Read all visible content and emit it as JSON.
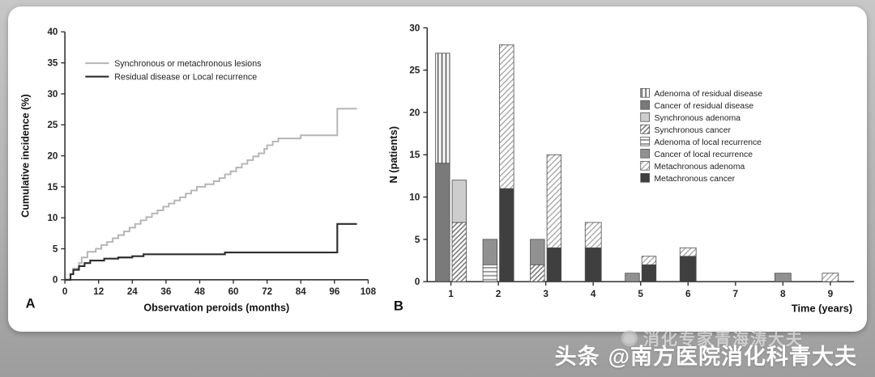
{
  "watermark": {
    "faint": "消化专家青海涛大夫",
    "brand": "头条",
    "handle": "@南方医院消化科青大夫"
  },
  "chart_data": [
    {
      "type": "line",
      "panel": "A",
      "title": "",
      "xlabel": "Observation peroids (months)",
      "ylabel": "Cumulative incidence (%)",
      "xlim": [
        0,
        108
      ],
      "ylim": [
        0,
        40
      ],
      "xticks": [
        0,
        12,
        24,
        36,
        48,
        60,
        72,
        84,
        96,
        108
      ],
      "yticks": [
        0,
        5,
        10,
        15,
        20,
        25,
        30,
        35,
        40
      ],
      "step": true,
      "legend_position": "upper-left",
      "series": [
        {
          "name": "Synchronous or metachronous lesions",
          "color": "#b5b5b5",
          "width": 2,
          "points": [
            [
              0,
              0
            ],
            [
              2,
              0.9
            ],
            [
              3,
              1.8
            ],
            [
              5,
              2.7
            ],
            [
              6,
              3.6
            ],
            [
              8,
              4.5
            ],
            [
              11,
              5
            ],
            [
              13,
              5.6
            ],
            [
              15,
              6.1
            ],
            [
              17,
              6.7
            ],
            [
              19,
              7.2
            ],
            [
              21,
              7.8
            ],
            [
              23,
              8.4
            ],
            [
              25,
              9
            ],
            [
              27,
              9.6
            ],
            [
              29,
              10.1
            ],
            [
              31,
              10.7
            ],
            [
              33,
              11.2
            ],
            [
              35,
              11.8
            ],
            [
              37,
              12.3
            ],
            [
              39,
              12.8
            ],
            [
              41,
              13.3
            ],
            [
              43,
              13.9
            ],
            [
              45,
              14.4
            ],
            [
              47,
              15
            ],
            [
              50,
              15.4
            ],
            [
              53,
              15.9
            ],
            [
              55,
              16.4
            ],
            [
              57,
              17
            ],
            [
              59,
              17.5
            ],
            [
              61,
              18.1
            ],
            [
              63,
              18.7
            ],
            [
              65,
              19.3
            ],
            [
              67,
              19.9
            ],
            [
              69,
              20.4
            ],
            [
              71,
              21.1
            ],
            [
              72,
              21.7
            ],
            [
              74,
              22.3
            ],
            [
              76,
              22.8
            ],
            [
              84,
              23.3
            ],
            [
              97,
              27.6
            ],
            [
              104,
              27.6
            ]
          ]
        },
        {
          "name": "Residual disease or Local recurrence",
          "color": "#2d2d2d",
          "width": 2.2,
          "points": [
            [
              0,
              0
            ],
            [
              2,
              0.9
            ],
            [
              3,
              1.6
            ],
            [
              5,
              2.2
            ],
            [
              7,
              2.7
            ],
            [
              9,
              3.1
            ],
            [
              14,
              3.4
            ],
            [
              19,
              3.6
            ],
            [
              24,
              3.8
            ],
            [
              28,
              4.1
            ],
            [
              57,
              4.4
            ],
            [
              96,
              4.4
            ],
            [
              97,
              9
            ],
            [
              104,
              9
            ]
          ]
        }
      ]
    },
    {
      "type": "bar",
      "panel": "B",
      "stacked": true,
      "xlabel": "Time (years)",
      "ylabel": "N (patients)",
      "ylim": [
        0,
        30
      ],
      "yticks": [
        0,
        5,
        10,
        15,
        20,
        25,
        30
      ],
      "categories": [
        "1",
        "2",
        "3",
        "4",
        "5",
        "6",
        "7",
        "8",
        "9"
      ],
      "legend_position": "upper-right",
      "legend": [
        {
          "name": "Adenoma of residual disease",
          "pattern": "vstripe"
        },
        {
          "name": "Cancer of residual disease",
          "pattern": "solid-dark"
        },
        {
          "name": "Synchronous adenoma",
          "pattern": "solid-light"
        },
        {
          "name": "Synchronous cancer",
          "pattern": "diag-dense"
        },
        {
          "name": "Adenoma of local recurrence",
          "pattern": "hstripe"
        },
        {
          "name": "Cancer of local recurrence",
          "pattern": "solid-mid"
        },
        {
          "name": "Metachronous adenoma",
          "pattern": "diag-light"
        },
        {
          "name": "Metachronous cancer",
          "pattern": "solid-black"
        }
      ],
      "bars": [
        {
          "year": "1",
          "stacks": [
            {
              "segments": [
                [
                  "Cancer of residual disease",
                  14
                ],
                [
                  "Adenoma of residual disease",
                  13
                ]
              ]
            },
            {
              "segments": [
                [
                  "Synchronous cancer",
                  7
                ],
                [
                  "Synchronous adenoma",
                  5
                ]
              ]
            }
          ]
        },
        {
          "year": "2",
          "stacks": [
            {
              "segments": [
                [
                  "Adenoma of local recurrence",
                  2
                ],
                [
                  "Cancer of local recurrence",
                  3
                ]
              ]
            },
            {
              "segments": [
                [
                  "Metachronous cancer",
                  11
                ],
                [
                  "Metachronous adenoma",
                  17
                ]
              ]
            }
          ]
        },
        {
          "year": "3",
          "stacks": [
            {
              "segments": [
                [
                  "Synchronous cancer",
                  2
                ],
                [
                  "Cancer of local recurrence",
                  3
                ]
              ]
            },
            {
              "segments": [
                [
                  "Metachronous cancer",
                  4
                ],
                [
                  "Metachronous adenoma",
                  11
                ]
              ]
            }
          ]
        },
        {
          "year": "4",
          "stacks": [
            {
              "segments": [
                [
                  "Metachronous cancer",
                  4
                ],
                [
                  "Metachronous adenoma",
                  3
                ]
              ]
            }
          ]
        },
        {
          "year": "5",
          "stacks": [
            {
              "segments": [
                [
                  "Cancer of local recurrence",
                  1
                ]
              ]
            },
            {
              "segments": [
                [
                  "Metachronous cancer",
                  2
                ],
                [
                  "Metachronous adenoma",
                  1
                ]
              ]
            }
          ]
        },
        {
          "year": "6",
          "stacks": [
            {
              "segments": [
                [
                  "Metachronous cancer",
                  3
                ],
                [
                  "Metachronous adenoma",
                  1
                ]
              ]
            }
          ]
        },
        {
          "year": "7",
          "stacks": []
        },
        {
          "year": "8",
          "stacks": [
            {
              "segments": [
                [
                  "Cancer of local recurrence",
                  1
                ]
              ]
            }
          ]
        },
        {
          "year": "9",
          "stacks": [
            {
              "segments": [
                [
                  "Metachronous adenoma",
                  1
                ]
              ]
            }
          ]
        }
      ]
    }
  ]
}
